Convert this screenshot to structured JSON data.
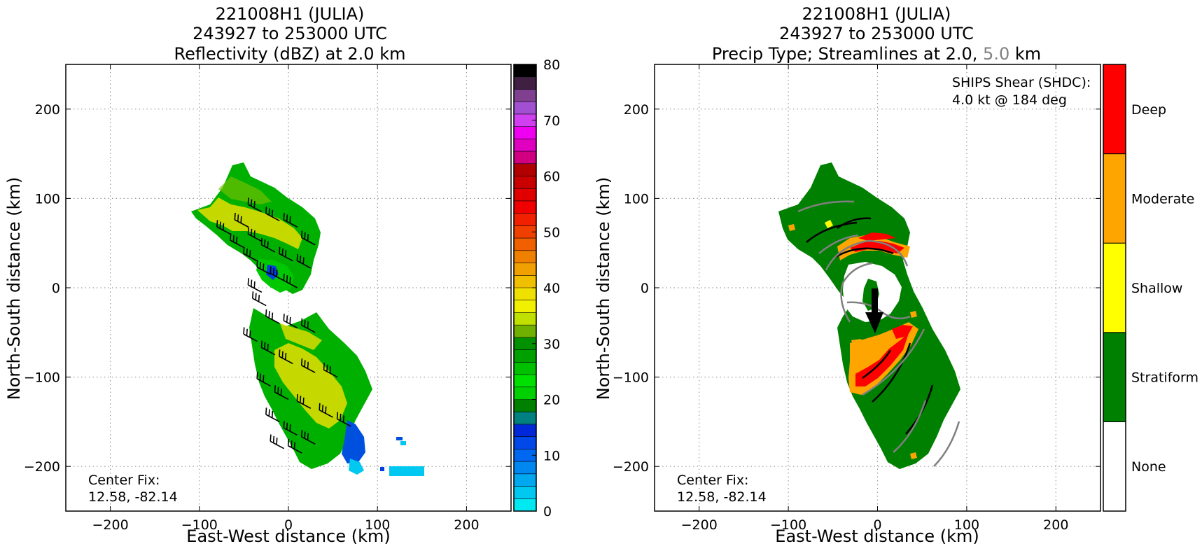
{
  "chart_data": [
    {
      "type": "heatmap",
      "title_lines": [
        "221008H1 (JULIA)",
        "243927 to 253000 UTC",
        "Reflectivity (dBZ) at 2.0 km"
      ],
      "xlabel": "East-West distance (km)",
      "ylabel": "North-South distance (km)",
      "xlim": [
        -250,
        250
      ],
      "ylim": [
        -250,
        250
      ],
      "xticks": [
        -200,
        -100,
        0,
        100,
        200
      ],
      "yticks": [
        -200,
        -100,
        0,
        100,
        200
      ],
      "grid": true,
      "annotation_lines": [
        "Center Fix:",
        "12.58, -82.14"
      ],
      "colorbar": {
        "min": 0,
        "max": 80,
        "ticks": [
          0,
          10,
          20,
          30,
          40,
          50,
          60,
          70,
          80
        ],
        "colors": [
          "#00e8f0",
          "#00c8f0",
          "#00a8f0",
          "#0088f0",
          "#0068f0",
          "#0048e8",
          "#0028d8",
          "#008080",
          "#008000",
          "#00d000",
          "#00e000",
          "#00c000",
          "#00a000",
          "#009000",
          "#70b000",
          "#c0e000",
          "#f0f000",
          "#f0e000",
          "#f0c000",
          "#f0a000",
          "#f08000",
          "#f06000",
          "#f04000",
          "#f02000",
          "#f00000",
          "#e00000",
          "#c80000",
          "#b00000",
          "#d00080",
          "#e000c0",
          "#f000f0",
          "#d040f0",
          "#a050d0",
          "#804090",
          "#402040",
          "#000000"
        ]
      },
      "wind_barbs": [
        {
          "x": -30,
          "y": 85
        },
        {
          "x": -10,
          "y": 75
        },
        {
          "x": 10,
          "y": 68
        },
        {
          "x": 30,
          "y": 48
        },
        {
          "x": -45,
          "y": 68
        },
        {
          "x": -30,
          "y": 52
        },
        {
          "x": -15,
          "y": 40
        },
        {
          "x": 5,
          "y": 30
        },
        {
          "x": 25,
          "y": 22
        },
        {
          "x": -65,
          "y": 60
        },
        {
          "x": -50,
          "y": 45
        },
        {
          "x": -35,
          "y": 30
        },
        {
          "x": -20,
          "y": 15
        },
        {
          "x": -5,
          "y": 8
        },
        {
          "x": 10,
          "y": 0
        },
        {
          "x": -30,
          "y": -5
        },
        {
          "x": -25,
          "y": -20
        },
        {
          "x": -10,
          "y": -40
        },
        {
          "x": 10,
          "y": -45
        },
        {
          "x": 30,
          "y": -50
        },
        {
          "x": -35,
          "y": -60
        },
        {
          "x": -15,
          "y": -75
        },
        {
          "x": 5,
          "y": -85
        },
        {
          "x": 30,
          "y": -95
        },
        {
          "x": 55,
          "y": -100
        },
        {
          "x": -20,
          "y": -110
        },
        {
          "x": 0,
          "y": -125
        },
        {
          "x": 25,
          "y": -135
        },
        {
          "x": 50,
          "y": -145
        },
        {
          "x": 70,
          "y": -155
        },
        {
          "x": -10,
          "y": -150
        },
        {
          "x": 10,
          "y": -165
        },
        {
          "x": 30,
          "y": -175
        },
        {
          "x": -5,
          "y": -180
        },
        {
          "x": 15,
          "y": -185
        }
      ]
    },
    {
      "type": "heatmap",
      "title_lines": [
        "221008H1 (JULIA)",
        "243927 to 253000 UTC"
      ],
      "title_line3_prefix": "Precip Type; Streamlines at 2.0, ",
      "title_line3_gray": "5.0",
      "title_line3_suffix": " km",
      "xlabel": "East-West distance (km)",
      "ylabel": "North-South distance (km)",
      "xlim": [
        -250,
        250
      ],
      "ylim": [
        -250,
        250
      ],
      "xticks": [
        -200,
        -100,
        0,
        100,
        200
      ],
      "yticks": [
        -200,
        -100,
        0,
        100,
        200
      ],
      "grid": true,
      "annotation_lines": [
        "Center Fix:",
        "12.58, -82.14"
      ],
      "shear_lines": [
        "SHIPS Shear (SHDC):",
        "4.0 kt @ 184 deg"
      ],
      "shear_vector": {
        "speed_kt": 4.0,
        "direction_deg": 184
      },
      "categories": [
        "None",
        "Stratiform",
        "Shallow",
        "Moderate",
        "Deep"
      ],
      "category_colors": [
        "#ffffff",
        "#008000",
        "#ffff00",
        "#ffa500",
        "#ff0000"
      ]
    }
  ]
}
